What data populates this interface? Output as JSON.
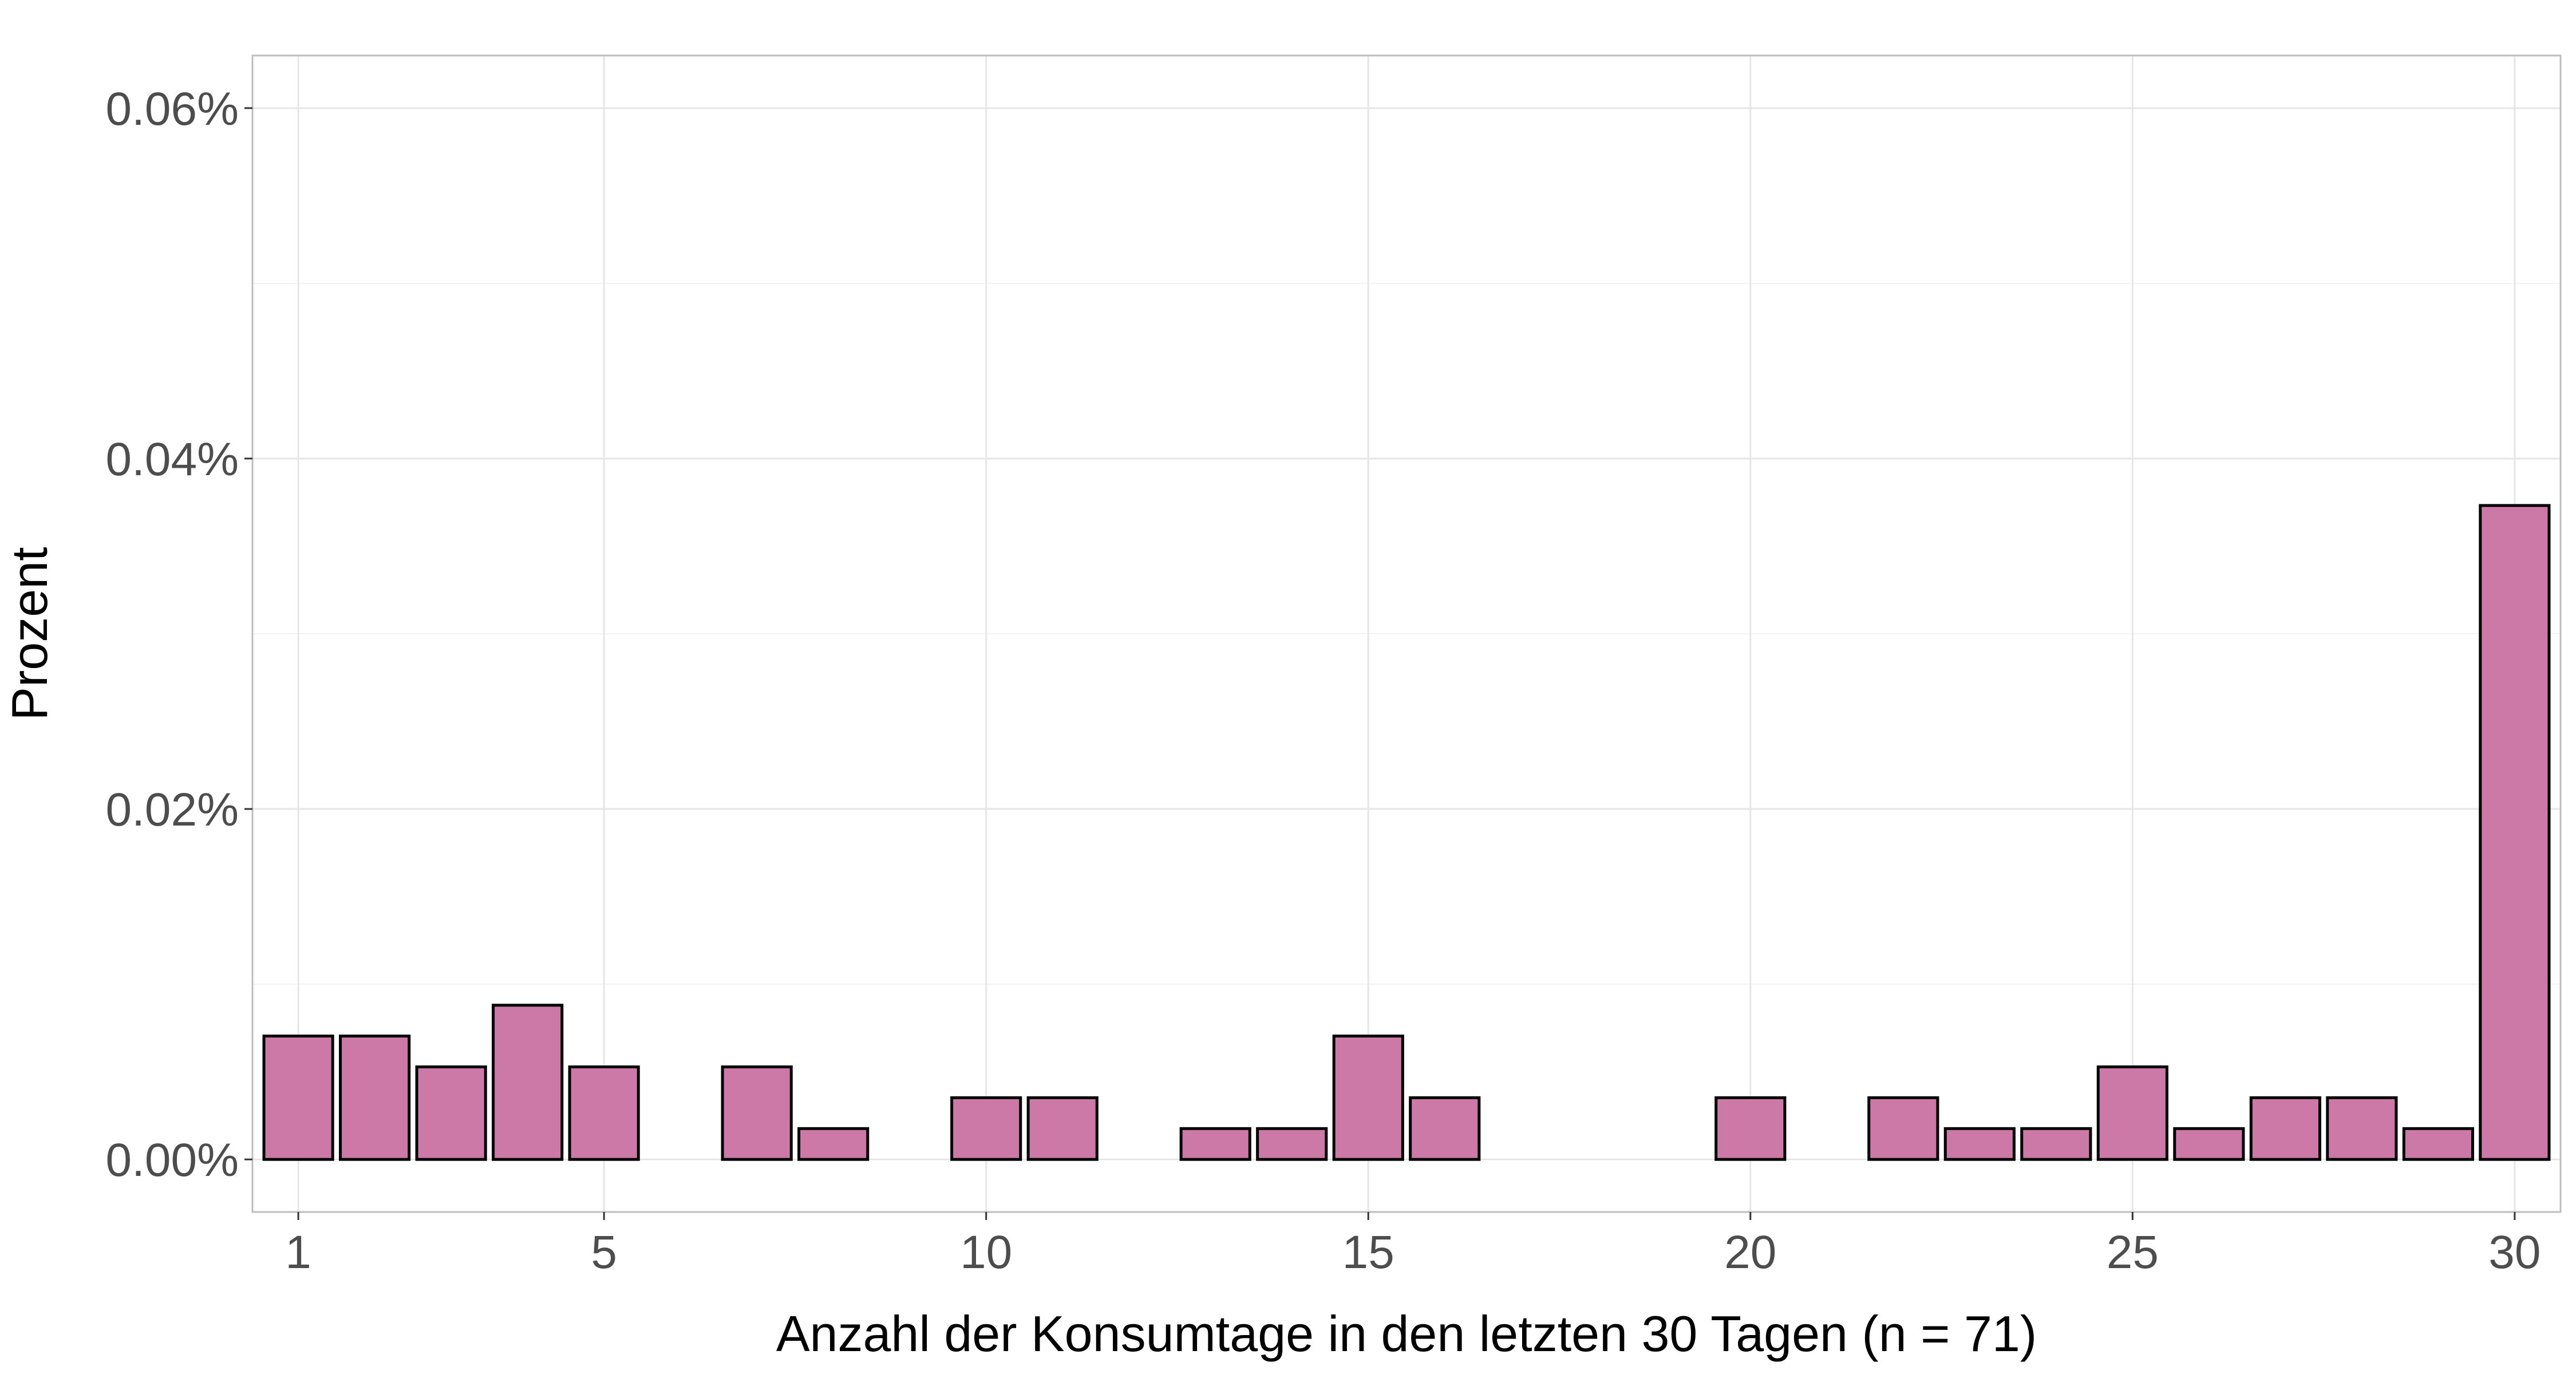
{
  "chart_data": {
    "type": "bar",
    "xlabel": "Anzahl der Konsumtage in den letzten 30 Tagen (n = 71)",
    "ylabel": "Prozent",
    "x_ticks": [
      1,
      5,
      10,
      15,
      20,
      25,
      30
    ],
    "x_tick_labels": [
      "1",
      "5",
      "10",
      "15",
      "20",
      "25",
      "30"
    ],
    "y_ticks": [
      0,
      0.0002,
      0.0004,
      0.0006
    ],
    "y_tick_labels": [
      "0.00%",
      "0.02%",
      "0.04%",
      "0.06%"
    ],
    "xlim": [
      0.4,
      30.6
    ],
    "ylim": [
      -3e-05,
      0.00063
    ],
    "grid": true,
    "bar_color": "#cc79a7",
    "bar_border_color": "#000000",
    "x": [
      1,
      2,
      3,
      4,
      5,
      7,
      8,
      10,
      11,
      13,
      14,
      15,
      16,
      20,
      22,
      23,
      24,
      25,
      26,
      27,
      28,
      29,
      30
    ],
    "values": [
      7.04e-05,
      7.04e-05,
      5.28e-05,
      8.8e-05,
      5.28e-05,
      5.28e-05,
      1.76e-05,
      3.52e-05,
      3.52e-05,
      1.76e-05,
      1.76e-05,
      7.04e-05,
      3.52e-05,
      3.52e-05,
      3.52e-05,
      1.76e-05,
      1.76e-05,
      5.28e-05,
      1.76e-05,
      3.52e-05,
      3.52e-05,
      1.76e-05,
      0.0003732
    ]
  }
}
